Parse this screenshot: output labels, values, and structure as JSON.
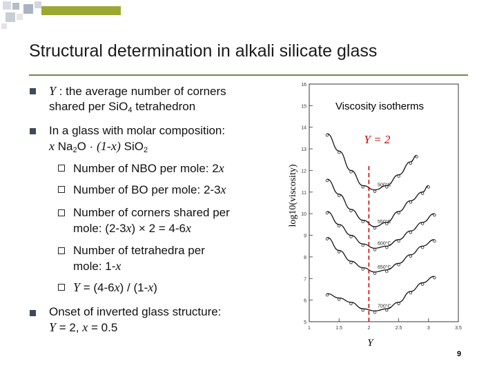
{
  "slide": {
    "title": "Structural determination in alkali silicate glass",
    "page_number": "9"
  },
  "bullets": {
    "b1_var": "Y",
    "b1_line1_rest": " : the average number of corners",
    "b1_line2_a": "shared per SiO",
    "b1_line2_sub": "4",
    "b1_line2_b": " tetrahedron",
    "b2_line1": "In a glass with molar composition:",
    "b2_x": "x",
    "b2_na": " Na",
    "b2_na_sub": "2",
    "b2_o": "O · ",
    "b2_paren": "(1-x)",
    "b2_si": " SiO",
    "b2_si_sub": "2",
    "sub1_text": "Number of NBO per mole: 2",
    "sub1_var": "x",
    "sub2_text": "Number of BO per mole: 2-3",
    "sub2_var": "x",
    "sub3_line1": "Number of corners shared per",
    "sub3_line2_a": "mole: (2-3",
    "sub3_line2_var1": "x",
    "sub3_line2_b": ") × 2 = 4-6",
    "sub3_line2_var2": "x",
    "sub4_line1": "Number of tetrahedra per",
    "sub4_line2_a": "mole: 1-",
    "sub4_line2_var": "x",
    "sub5_var": "Y",
    "sub5_a": " = (4-6",
    "sub5_x1": "x",
    "sub5_b": ") / (1-",
    "sub5_x2": "x",
    "sub5_c": ")",
    "b3_line1": "Onset of inverted glass structure:",
    "b3_var_y": "Y",
    "b3_mid": " = 2, ",
    "b3_var_x": "x",
    "b3_end": " = 0.5"
  },
  "chart_data": {
    "type": "line",
    "title": "Viscosity isotherms",
    "ylabel": "log10(viscosity)",
    "xlabel": "Y",
    "annotation": "Y = 2",
    "xlim": [
      1,
      3.5
    ],
    "ylim": [
      5,
      16
    ],
    "x_ticks": [
      "1",
      "1.5",
      "2",
      "2.5",
      "3",
      "3.5"
    ],
    "y_ticks": [
      "5",
      "6",
      "7",
      "8",
      "9",
      "10",
      "11",
      "12",
      "13",
      "14",
      "15",
      "16"
    ],
    "reference_line_x": 2,
    "colors": {
      "reference_line": "#cc0000",
      "annotation": "#cc0000",
      "curves": "#111111"
    },
    "series": [
      {
        "name": "500°C",
        "x": [
          1.3,
          1.5,
          1.7,
          1.9,
          2.1,
          2.3,
          2.5,
          2.7,
          2.8
        ],
        "y": [
          13.7,
          12.9,
          12.0,
          11.3,
          11.1,
          11.3,
          11.8,
          12.4,
          12.7
        ]
      },
      {
        "name": "550°C",
        "x": [
          1.3,
          1.5,
          1.7,
          1.9,
          2.1,
          2.3,
          2.5,
          2.7,
          2.9,
          3.0
        ],
        "y": [
          11.6,
          10.9,
          10.2,
          9.7,
          9.4,
          9.6,
          10.1,
          10.6,
          11.0,
          11.3
        ]
      },
      {
        "name": "600°C",
        "x": [
          1.3,
          1.5,
          1.7,
          1.9,
          2.1,
          2.3,
          2.5,
          2.7,
          2.9,
          3.1
        ],
        "y": [
          10.1,
          9.5,
          9.0,
          8.6,
          8.4,
          8.5,
          8.8,
          9.2,
          9.6,
          10.0
        ]
      },
      {
        "name": "650°C",
        "x": [
          1.3,
          1.5,
          1.7,
          1.9,
          2.1,
          2.3,
          2.5,
          2.7,
          2.9,
          3.1
        ],
        "y": [
          8.9,
          8.3,
          7.8,
          7.5,
          7.3,
          7.4,
          7.7,
          8.1,
          8.5,
          8.8
        ]
      },
      {
        "name": "700°C",
        "x": [
          1.3,
          1.5,
          1.7,
          1.9,
          2.1,
          2.3,
          2.5,
          2.7,
          2.9,
          3.1
        ],
        "y": [
          6.3,
          6.1,
          5.9,
          5.6,
          5.5,
          5.6,
          5.9,
          6.4,
          6.8,
          7.1
        ]
      }
    ]
  }
}
